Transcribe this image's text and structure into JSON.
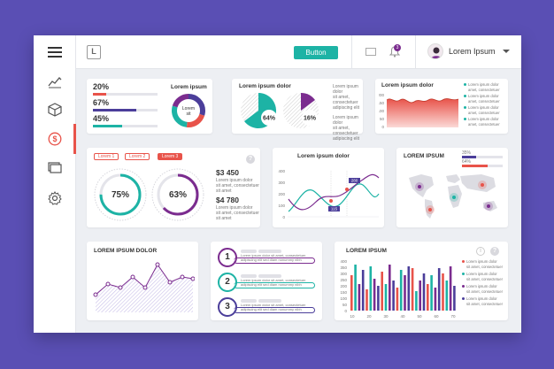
{
  "header": {
    "button_label": "Button",
    "notification_count": "3",
    "user_name": "Lorem Ipsum"
  },
  "sidebar": {
    "items": [
      {
        "icon": "line-chart-icon"
      },
      {
        "icon": "cube-icon"
      },
      {
        "icon": "dollar-icon",
        "active": true
      },
      {
        "icon": "cards-icon"
      },
      {
        "icon": "gear-icon"
      }
    ]
  },
  "progress_card": {
    "title": "Lorem ipsum",
    "donut_text": "Lorem sit",
    "rows": [
      {
        "label": "20%",
        "value": 0.2,
        "color": "#e8534a"
      },
      {
        "label": "67%",
        "value": 0.67,
        "color": "#4b3e9a"
      },
      {
        "label": "45%",
        "value": 0.45,
        "color": "#1db3a5"
      }
    ]
  },
  "pie_card": {
    "title": "Lorem ipsum dolor",
    "pie1_label": "64%",
    "pie2_label": "16%",
    "legend_lines": [
      "Lorem ipsum dolor",
      "sit amet, consectetuer",
      "adipiscing elit",
      "Lorem ipsum dolor",
      "sit amet, consectetuer",
      "adipiscing elit"
    ]
  },
  "area_card": {
    "title": "Lorem ipsum dolor",
    "y_ticks": [
      "200",
      "150",
      "100",
      "50",
      "0"
    ],
    "legend": [
      {
        "a": "Lorem ipsum dolor",
        "b": "amet, consectetuer"
      },
      {
        "a": "Lorem ipsum dolor",
        "b": "amet, consectetuer"
      },
      {
        "a": "Lorem ipsum dolor",
        "b": "amet, consectetuer"
      },
      {
        "a": "Lorem ipsum dolor",
        "b": "amet, consectetuer"
      }
    ]
  },
  "gauge_card": {
    "tabs": [
      "Lorem 1",
      "Lorem 2",
      "Lorem 3"
    ],
    "gauge1_label": "75%",
    "gauge2_label": "63%",
    "amount1": "$3 450",
    "amount2": "$4 780",
    "desc": [
      "Lorem ipsum dolor",
      "sit amet, consectetuer",
      "sit amet"
    ],
    "help": "?"
  },
  "line_card": {
    "title": "Lorem ipsum dolor",
    "y_ticks": [
      "400",
      "300",
      "200",
      "100",
      "0"
    ],
    "marker1": "280",
    "marker2": "115"
  },
  "map_card": {
    "title": "LOREM IPSUM",
    "stat1": "35%",
    "stat2": "64%"
  },
  "lower_area_card": {
    "title": "LOREM IPSUM DOLOR"
  },
  "steps_card": {
    "steps": [
      {
        "num": "1",
        "line1": "Lorem ipsum dolor sit amet, consectetuer",
        "line2": "adipiscing elit sed diam nonummy nibh"
      },
      {
        "num": "2",
        "line1": "Lorem ipsum dolor sit amet, consectetuer",
        "line2": "adipiscing elit sed diam nonummy nibh"
      },
      {
        "num": "3",
        "line1": "Lorem ipsum dolor sit amet, consectetuer",
        "line2": "adipiscing elit sed diam nonummy nibh"
      }
    ]
  },
  "bar_card": {
    "title": "LOREM IPSUM",
    "y_ticks": [
      "400",
      "350",
      "300",
      "250",
      "200",
      "150",
      "100",
      "50",
      "0"
    ],
    "x_ticks": [
      "10",
      "20",
      "30",
      "40",
      "50",
      "60",
      "70"
    ],
    "help": "?",
    "info": "i",
    "legend": [
      {
        "a": "Lorem ipsum dolor",
        "b": "sit amet, consectetuer"
      },
      {
        "a": "Lorem ipsum dolor",
        "b": "sit amet, consectetuer"
      },
      {
        "a": "Lorem ipsum dolor",
        "b": "sit amet, consectetuer"
      },
      {
        "a": "Lorem ipsum dolor",
        "b": "sit amet, consectetuer"
      }
    ]
  },
  "colors": {
    "background": "#5a4fb4",
    "teal": "#1db3a5",
    "coral": "#e8534a",
    "purple": "#7b2c8f",
    "indigo": "#4b3e9a"
  }
}
